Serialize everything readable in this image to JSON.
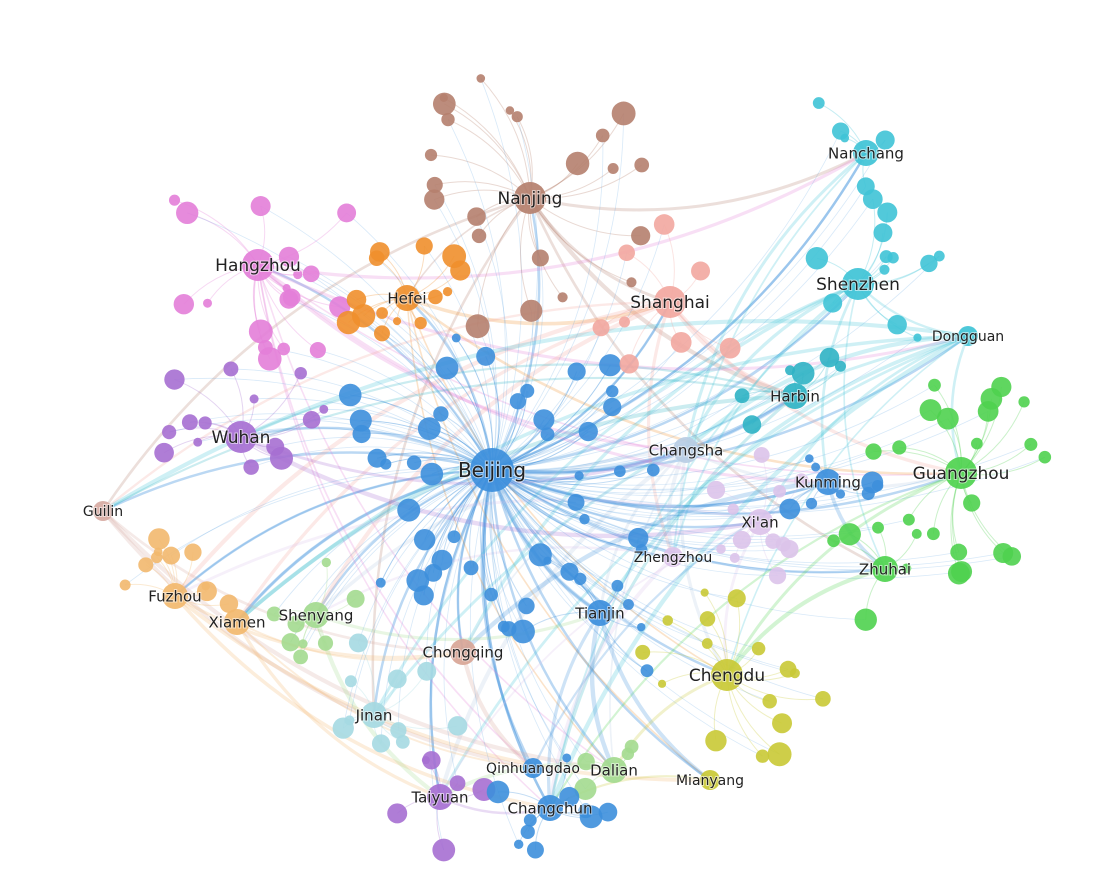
{
  "nodes": [
    {
      "id": "Beijing",
      "label": "Beijing",
      "color": "#3d8fdc",
      "size": "xl"
    },
    {
      "id": "Nanjing",
      "label": "Nanjing",
      "color": "#b5806e",
      "size": "l"
    },
    {
      "id": "Hangzhou",
      "label": "Hangzhou",
      "color": "#e37ed8",
      "size": "l"
    },
    {
      "id": "Hefei",
      "label": "Hefei",
      "color": "#ef8f2c",
      "size": "m"
    },
    {
      "id": "Shanghai",
      "label": "Shanghai",
      "color": "#f2a7a0",
      "size": "l"
    },
    {
      "id": "Shenzhen",
      "label": "Shenzhen",
      "color": "#3fc3d6",
      "size": "l"
    },
    {
      "id": "Nanchang",
      "label": "Nanchang",
      "color": "#3fc3d6",
      "size": "m"
    },
    {
      "id": "Dongguan",
      "label": "Dongguan",
      "color": "#3fc3d6",
      "size": "s"
    },
    {
      "id": "Harbin",
      "label": "Harbin",
      "color": "#2fb3c4",
      "size": "m"
    },
    {
      "id": "Wuhan",
      "label": "Wuhan",
      "color": "#a66fd2",
      "size": "l"
    },
    {
      "id": "Changsha",
      "label": "Changsha",
      "color": "#b8cde4",
      "size": "m"
    },
    {
      "id": "Kunming",
      "label": "Kunming",
      "color": "#3d8fdc",
      "size": "m"
    },
    {
      "id": "Guangzhou",
      "label": "Guangzhou",
      "color": "#4fd24f",
      "size": "l"
    },
    {
      "id": "Guilin",
      "label": "Guilin",
      "color": "#d7aaa2",
      "size": "s"
    },
    {
      "id": "Xian",
      "label": "Xi'an",
      "color": "#dcc3ea",
      "size": "m"
    },
    {
      "id": "Zhengzhou",
      "label": "Zhengzhou",
      "color": "#dcc3ea",
      "size": "s"
    },
    {
      "id": "Zhuhai",
      "label": "Zhuhai",
      "color": "#4fd24f",
      "size": "m"
    },
    {
      "id": "Fuzhou",
      "label": "Fuzhou",
      "color": "#f2b86e",
      "size": "m"
    },
    {
      "id": "Xiamen",
      "label": "Xiamen",
      "color": "#f2b86e",
      "size": "m"
    },
    {
      "id": "Shenyang",
      "label": "Shenyang",
      "color": "#a3da8f",
      "size": "m"
    },
    {
      "id": "Tianjin",
      "label": "Tianjin",
      "color": "#3d8fdc",
      "size": "m"
    },
    {
      "id": "Chongqing",
      "label": "Chongqing",
      "color": "#d8a596",
      "size": "m"
    },
    {
      "id": "Chengdu",
      "label": "Chengdu",
      "color": "#c9c935",
      "size": "l"
    },
    {
      "id": "Jinan",
      "label": "Jinan",
      "color": "#a5d9e2",
      "size": "m"
    },
    {
      "id": "Qinhuangdao",
      "label": "Qinhuangdao",
      "color": "#3d8fdc",
      "size": "s"
    },
    {
      "id": "Dalian",
      "label": "Dalian",
      "color": "#a3da8f",
      "size": "m"
    },
    {
      "id": "Mianyang",
      "label": "Mianyang",
      "color": "#c9c935",
      "size": "s"
    },
    {
      "id": "Taiyuan",
      "label": "Taiyuan",
      "color": "#a66fd2",
      "size": "m"
    },
    {
      "id": "Changchun",
      "label": "Changchun",
      "color": "#3d8fdc",
      "size": "m"
    }
  ]
}
